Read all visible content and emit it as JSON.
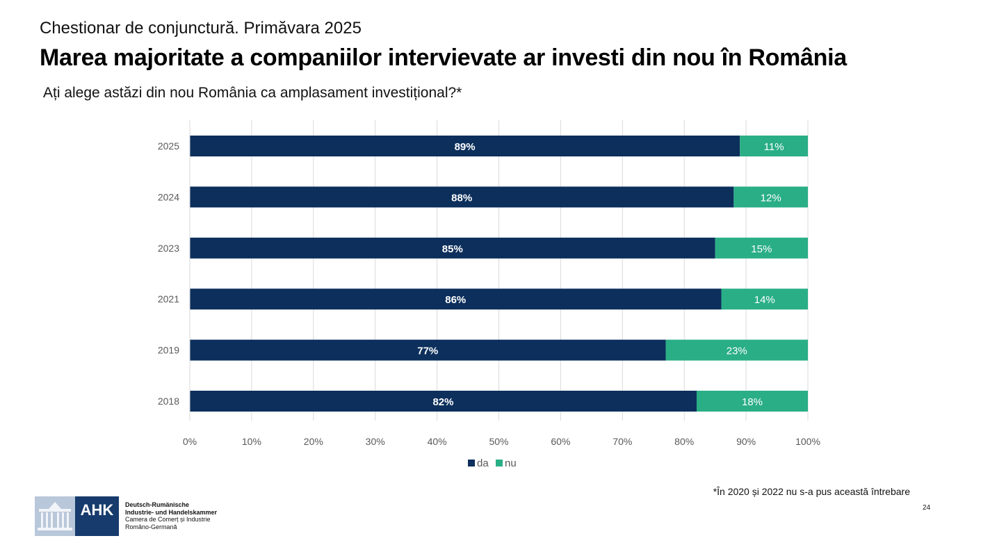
{
  "header": {
    "kicker": "Chestionar de conjunctură. Primăvara 2025",
    "title": "Marea majoritate a companiilor intervievate ar investi din nou în România",
    "question": "Ați alege astăzi din nou România ca amplasament investițional?*"
  },
  "chart_data": {
    "type": "bar",
    "orientation": "horizontal",
    "stacked": "percent",
    "categories": [
      "2025",
      "2024",
      "2023",
      "2021",
      "2019",
      "2018"
    ],
    "series": [
      {
        "name": "da",
        "color": "#0c2f5c",
        "values": [
          89,
          88,
          85,
          86,
          77,
          82
        ],
        "labels": [
          "89%",
          "88%",
          "85%",
          "86%",
          "77%",
          "82%"
        ]
      },
      {
        "name": "nu",
        "color": "#2aae86",
        "values": [
          11,
          12,
          15,
          14,
          23,
          18
        ],
        "labels": [
          "11%",
          "12%",
          "15%",
          "14%",
          "23%",
          "18%"
        ]
      }
    ],
    "xlim": [
      0,
      100
    ],
    "xticks": [
      "0%",
      "10%",
      "20%",
      "30%",
      "40%",
      "50%",
      "60%",
      "70%",
      "80%",
      "90%",
      "100%"
    ],
    "grid": true,
    "legend_position": "bottom"
  },
  "footnote": "*În 2020 și 2022 nu s-a pus această întrebare",
  "page_number": "24",
  "logo": {
    "badge": "AHK",
    "lines": [
      "Deutsch-Rumänische",
      "Industrie- und Handelskammer",
      "Camera de Comerț și Industrie",
      "Româno-Germană"
    ]
  }
}
